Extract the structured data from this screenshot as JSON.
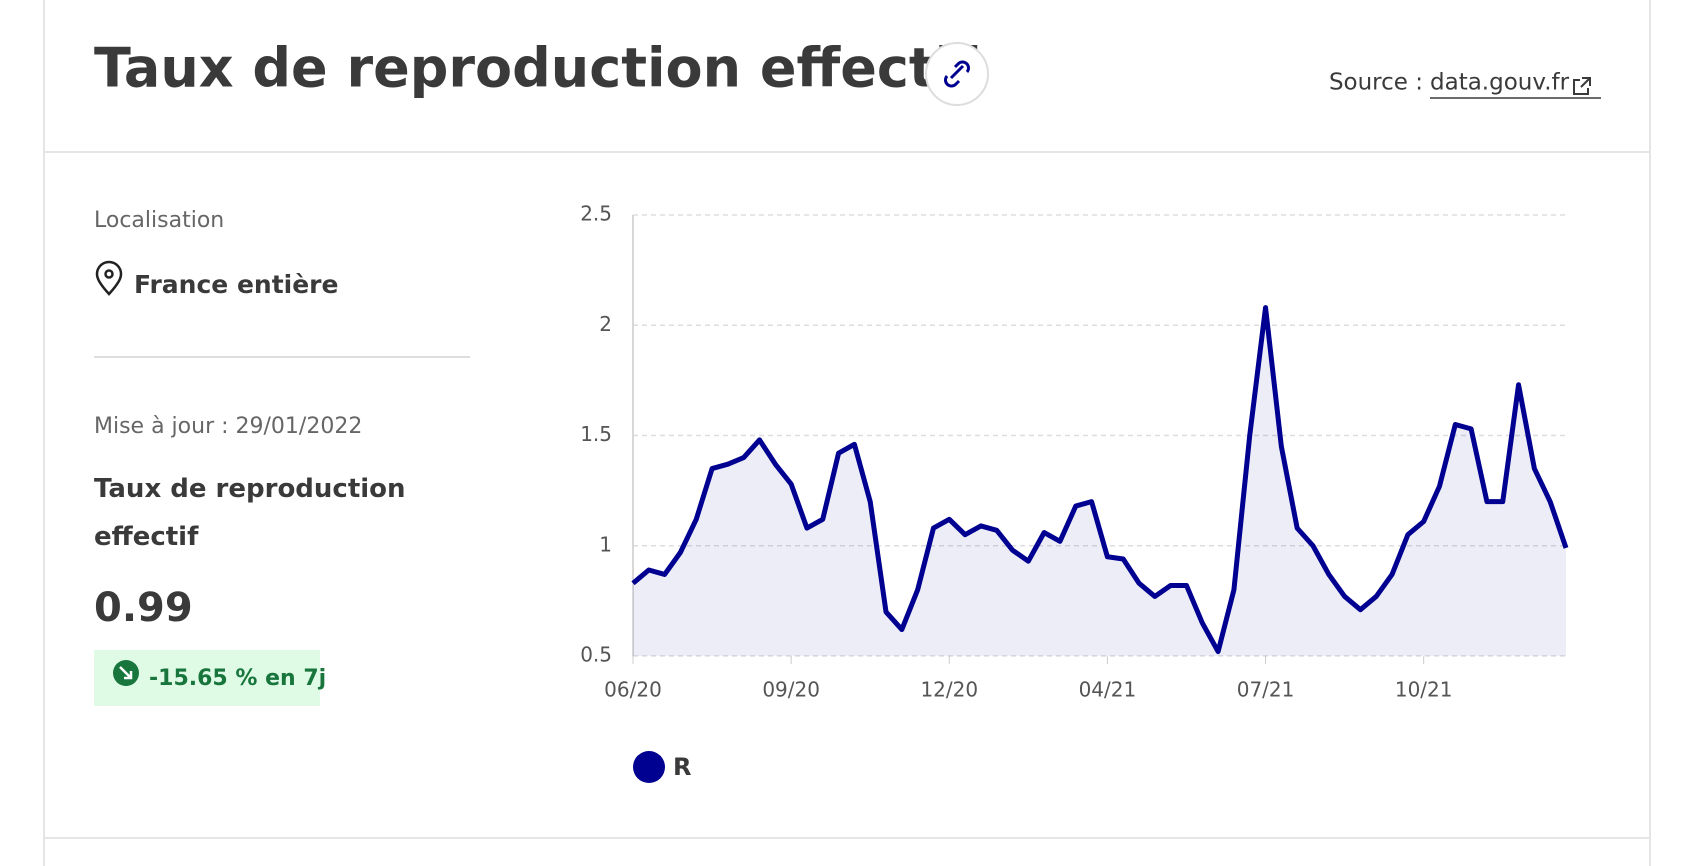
{
  "header": {
    "title": "Taux de reproduction effectif",
    "source_label": "Source :",
    "source_link": "data.gouv.fr"
  },
  "sidebar": {
    "location_label": "Localisation",
    "location": "France entière",
    "updated": "Mise à jour : 29/01/2022",
    "indicator": "Taux de reproduction effectif",
    "value": "0.99",
    "change": "-15.65 % en 7j"
  },
  "chart_data": {
    "type": "line",
    "categories": [
      "06/20",
      null,
      null,
      null,
      null,
      null,
      null,
      null,
      null,
      null,
      "09/20",
      null,
      null,
      null,
      null,
      null,
      null,
      null,
      null,
      null,
      "12/20",
      null,
      null,
      null,
      null,
      null,
      null,
      null,
      null,
      null,
      "04/21",
      null,
      null,
      null,
      null,
      null,
      null,
      null,
      null,
      null,
      "07/21",
      null,
      null,
      null,
      null,
      null,
      null,
      null,
      null,
      null,
      "10/21",
      null,
      null,
      null,
      null,
      null,
      null,
      null,
      null,
      null
    ],
    "series": [
      {
        "name": "R",
        "color": "#000091",
        "values": [
          0.83,
          0.89,
          0.87,
          0.97,
          1.12,
          1.35,
          1.37,
          1.4,
          1.48,
          1.37,
          1.28,
          1.08,
          1.12,
          1.42,
          1.46,
          1.2,
          0.7,
          0.62,
          0.8,
          1.08,
          1.12,
          1.05,
          1.09,
          1.07,
          0.98,
          0.93,
          1.06,
          1.02,
          1.18,
          1.2,
          0.95,
          0.94,
          0.83,
          0.77,
          0.82,
          0.82,
          0.65,
          0.52,
          0.8,
          1.5,
          2.08,
          1.45,
          1.08,
          1.0,
          0.87,
          0.77,
          0.71,
          0.77,
          0.87,
          1.05,
          1.11,
          1.27,
          1.55,
          1.53,
          1.2,
          1.2,
          1.73,
          1.35,
          1.2,
          0.99
        ]
      }
    ],
    "ylim": [
      0.5,
      2.5
    ],
    "yticks": [
      0.5,
      1,
      1.5,
      2,
      2.5
    ],
    "grid": true,
    "area": true
  }
}
